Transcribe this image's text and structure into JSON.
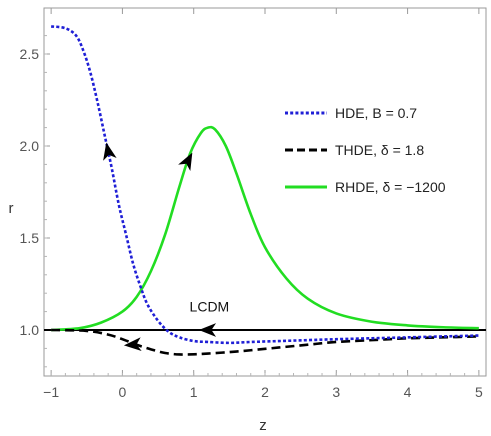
{
  "chart_data": {
    "type": "line",
    "xlabel": "z",
    "ylabel": "r",
    "xlim": [
      -1.1,
      5.1
    ],
    "ylim": [
      0.75,
      2.75
    ],
    "x_ticks": [
      -1,
      0,
      1,
      2,
      3,
      4,
      5
    ],
    "y_ticks": [
      1.0,
      1.5,
      2.0,
      2.5
    ],
    "x_tick_labels": [
      "−1",
      "0",
      "1",
      "2",
      "3",
      "4",
      "5"
    ],
    "y_tick_labels": [
      "1.0",
      "1.5",
      "2.0",
      "2.5"
    ],
    "legend_position": "top-right",
    "series": [
      {
        "name": "HDE, B = 0.7",
        "style": "dotted",
        "color": "#1f1fd6",
        "x": [
          -1.0,
          -0.8,
          -0.65,
          -0.55,
          -0.45,
          -0.35,
          -0.25,
          -0.15,
          -0.05,
          0.05,
          0.15,
          0.25,
          0.35,
          0.5,
          0.65,
          0.8,
          1.0,
          1.2,
          1.5,
          1.8,
          2.2,
          2.6,
          3.0,
          3.5,
          4.0,
          4.5,
          5.0
        ],
        "y": [
          2.65,
          2.64,
          2.6,
          2.52,
          2.4,
          2.24,
          2.06,
          1.88,
          1.68,
          1.52,
          1.36,
          1.24,
          1.14,
          1.05,
          0.99,
          0.96,
          0.94,
          0.935,
          0.93,
          0.935,
          0.94,
          0.945,
          0.95,
          0.955,
          0.96,
          0.965,
          0.97
        ]
      },
      {
        "name": "THDE, δ = 1.8",
        "style": "dashed",
        "color": "#000000",
        "x": [
          -1.0,
          -0.5,
          -0.2,
          0.0,
          0.2,
          0.4,
          0.6,
          0.8,
          1.0,
          1.2,
          1.5,
          1.8,
          2.2,
          2.6,
          3.0,
          3.5,
          4.0,
          4.5,
          5.0
        ],
        "y": [
          1.0,
          0.995,
          0.975,
          0.95,
          0.92,
          0.895,
          0.875,
          0.867,
          0.868,
          0.872,
          0.88,
          0.89,
          0.905,
          0.92,
          0.935,
          0.945,
          0.955,
          0.96,
          0.965
        ]
      },
      {
        "name": "RHDE, δ = −1200",
        "style": "solid",
        "color": "#22dd22",
        "x": [
          -1.0,
          -0.6,
          -0.3,
          0.0,
          0.2,
          0.4,
          0.6,
          0.8,
          0.95,
          1.1,
          1.2,
          1.3,
          1.45,
          1.6,
          1.8,
          2.0,
          2.3,
          2.6,
          3.0,
          3.5,
          4.0,
          4.5,
          5.0
        ],
        "y": [
          1.0,
          1.01,
          1.04,
          1.1,
          1.18,
          1.32,
          1.52,
          1.78,
          1.96,
          2.07,
          2.1,
          2.09,
          2.0,
          1.85,
          1.63,
          1.45,
          1.28,
          1.17,
          1.09,
          1.045,
          1.025,
          1.015,
          1.01
        ]
      },
      {
        "name": "LCDM",
        "style": "solid",
        "color": "#000000",
        "x": [
          -1.1,
          5.1
        ],
        "y": [
          1.0,
          1.0
        ]
      }
    ],
    "arrows": [
      {
        "series": "HDE, B = 0.7",
        "x": -0.2,
        "y": 1.97,
        "direction": "up"
      },
      {
        "series": "RHDE, δ = −1200",
        "x": 0.92,
        "y": 1.92,
        "direction": "up"
      },
      {
        "series": "THDE, δ = 1.8",
        "x": 0.15,
        "y": 0.92,
        "direction": "left"
      },
      {
        "series": "LCDM",
        "x": 1.2,
        "y": 1.0,
        "direction": "left"
      }
    ],
    "annotations": [
      {
        "text": "LCDM",
        "x": 1.22,
        "y": 1.1
      }
    ]
  }
}
